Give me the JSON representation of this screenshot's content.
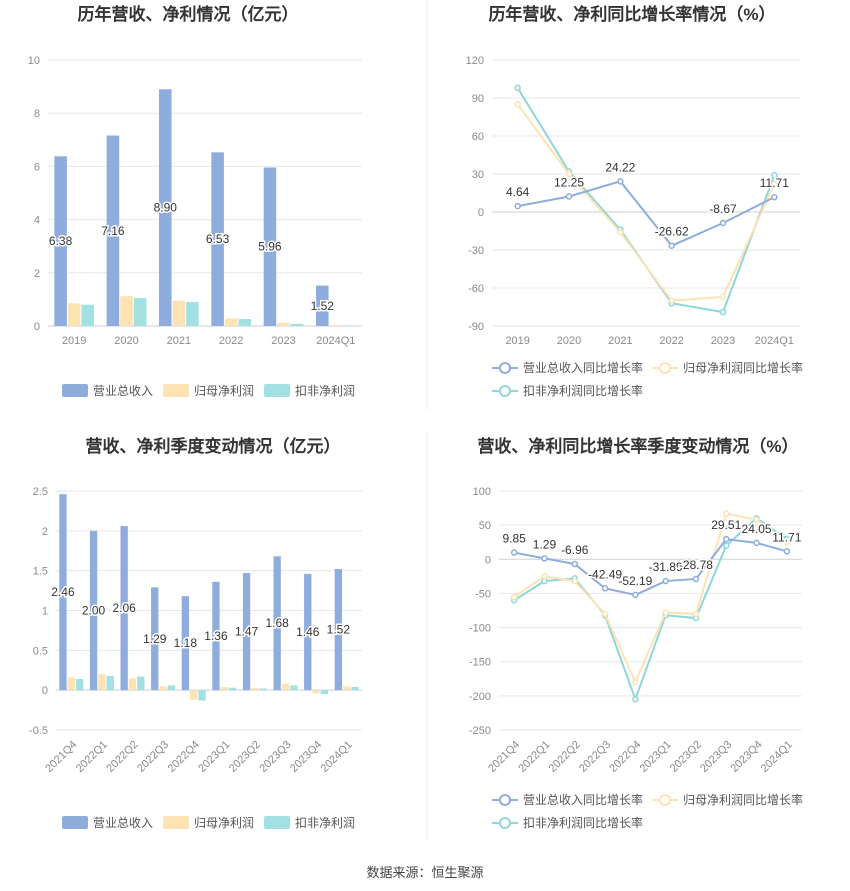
{
  "footer": {
    "source": "数据来源：恒生聚源"
  },
  "colors": {
    "revenue": "#8eaddc",
    "net_profit": "#fde2b3",
    "deducted_profit": "#a3e0e2",
    "revenue_line": "#8eaddc",
    "net_line": "#fde2b3",
    "deducted_line": "#8dd7d9",
    "grid": "#e6e6ee",
    "axis_text": "#8a8a8a",
    "title": "#333333"
  },
  "chart_data": [
    {
      "id": "annual-bar",
      "type": "bar",
      "title": "历年营收、净利情况（亿元）",
      "categories": [
        "2019",
        "2020",
        "2021",
        "2022",
        "2023",
        "2024Q1"
      ],
      "ylim": [
        0,
        10
      ],
      "yticks": [
        0,
        2,
        4,
        6,
        8,
        10
      ],
      "series": [
        {
          "name": "营业总收入",
          "values": [
            6.38,
            7.16,
            8.9,
            6.53,
            5.96,
            1.52
          ]
        },
        {
          "name": "归母净利润",
          "values": [
            0.85,
            1.12,
            0.95,
            0.28,
            0.12,
            0.03
          ]
        },
        {
          "name": "扣非净利润",
          "values": [
            0.8,
            1.05,
            0.9,
            0.26,
            0.08,
            0.02
          ]
        }
      ],
      "data_labels": [
        "6.38",
        "7.16",
        "8.90",
        "6.53",
        "5.96",
        "1.52"
      ],
      "legend": "bottom"
    },
    {
      "id": "annual-line",
      "type": "line",
      "title": "历年营收、净利同比增长率情况（%）",
      "categories": [
        "2019",
        "2020",
        "2021",
        "2022",
        "2023",
        "2024Q1"
      ],
      "ylim": [
        -90,
        120
      ],
      "yticks": [
        -90,
        -60,
        -30,
        0,
        30,
        60,
        90,
        120
      ],
      "series": [
        {
          "name": "营业总收入同比增长率",
          "values": [
            4.64,
            12.25,
            24.22,
            -26.62,
            -8.67,
            11.71
          ]
        },
        {
          "name": "归母净利润同比增长率",
          "values": [
            85,
            30,
            -16,
            -70,
            -67,
            22
          ]
        },
        {
          "name": "扣非净利润同比增长率",
          "values": [
            98,
            32,
            -14,
            -72,
            -79,
            29
          ]
        }
      ],
      "data_labels": [
        "4.64",
        "12.25",
        "24.22",
        "-26.62",
        "-8.67",
        "11.71"
      ],
      "legend": "bottom"
    },
    {
      "id": "quarter-bar",
      "type": "bar",
      "title": "营收、净利季度变动情况（亿元）",
      "categories": [
        "2021Q4",
        "2022Q1",
        "2022Q2",
        "2022Q3",
        "2022Q4",
        "2023Q1",
        "2023Q2",
        "2023Q3",
        "2023Q4",
        "2024Q1"
      ],
      "ylim": [
        -0.5,
        2.5
      ],
      "yticks": [
        -0.5,
        0,
        0.5,
        1,
        1.5,
        2,
        2.5
      ],
      "series": [
        {
          "name": "营业总收入",
          "values": [
            2.46,
            2.0,
            2.06,
            1.29,
            1.18,
            1.36,
            1.47,
            1.68,
            1.46,
            1.52
          ]
        },
        {
          "name": "归母净利润",
          "values": [
            0.16,
            0.2,
            0.15,
            0.05,
            -0.12,
            0.04,
            0.03,
            0.08,
            -0.04,
            0.05
          ]
        },
        {
          "name": "扣非净利润",
          "values": [
            0.14,
            0.18,
            0.17,
            0.06,
            -0.13,
            0.03,
            0.02,
            0.06,
            -0.05,
            0.04
          ]
        }
      ],
      "data_labels": [
        "2.46",
        "2.00",
        "2.06",
        "1.29",
        "1.18",
        "1.36",
        "1.47",
        "1.68",
        "1.46",
        "1.52"
      ],
      "legend": "bottom"
    },
    {
      "id": "quarter-line",
      "type": "line",
      "title": "营收、净利同比增长率季度变动情况（%）",
      "categories": [
        "2021Q4",
        "2022Q1",
        "2022Q2",
        "2022Q3",
        "2022Q4",
        "2023Q1",
        "2023Q2",
        "2023Q3",
        "2023Q4",
        "2024Q1"
      ],
      "ylim": [
        -250,
        100
      ],
      "yticks": [
        -250,
        -200,
        -150,
        -100,
        -50,
        0,
        50,
        100
      ],
      "series": [
        {
          "name": "营业总收入同比增长率",
          "values": [
            9.85,
            1.29,
            -6.96,
            -42.49,
            -52.19,
            -31.89,
            -28.78,
            29.51,
            24.05,
            11.71
          ]
        },
        {
          "name": "归母净利润同比增长率",
          "values": [
            -55,
            -25,
            -32,
            -80,
            -180,
            -78,
            -80,
            67,
            58,
            25
          ]
        },
        {
          "name": "扣非净利润同比增长率",
          "values": [
            -60,
            -32,
            -28,
            -82,
            -205,
            -82,
            -86,
            20,
            60,
            30
          ]
        }
      ],
      "data_labels": [
        "9.85",
        "1.29",
        "-6.96",
        "-42.49",
        "-52.19",
        "-31.89",
        "-28.78",
        "29.51",
        "24.05",
        "11.71"
      ],
      "legend": "bottom"
    }
  ]
}
